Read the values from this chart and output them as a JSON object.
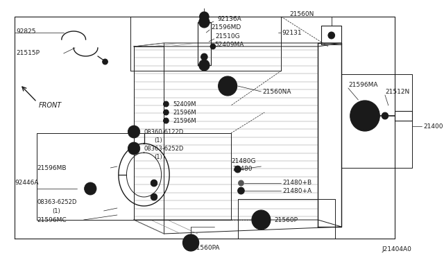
{
  "background_color": "#ffffff",
  "diagram_code": "J21404A0",
  "col": "#1a1a1a",
  "fig_w": 6.4,
  "fig_h": 3.72,
  "xlim": [
    0,
    640
  ],
  "ylim": [
    0,
    372
  ]
}
